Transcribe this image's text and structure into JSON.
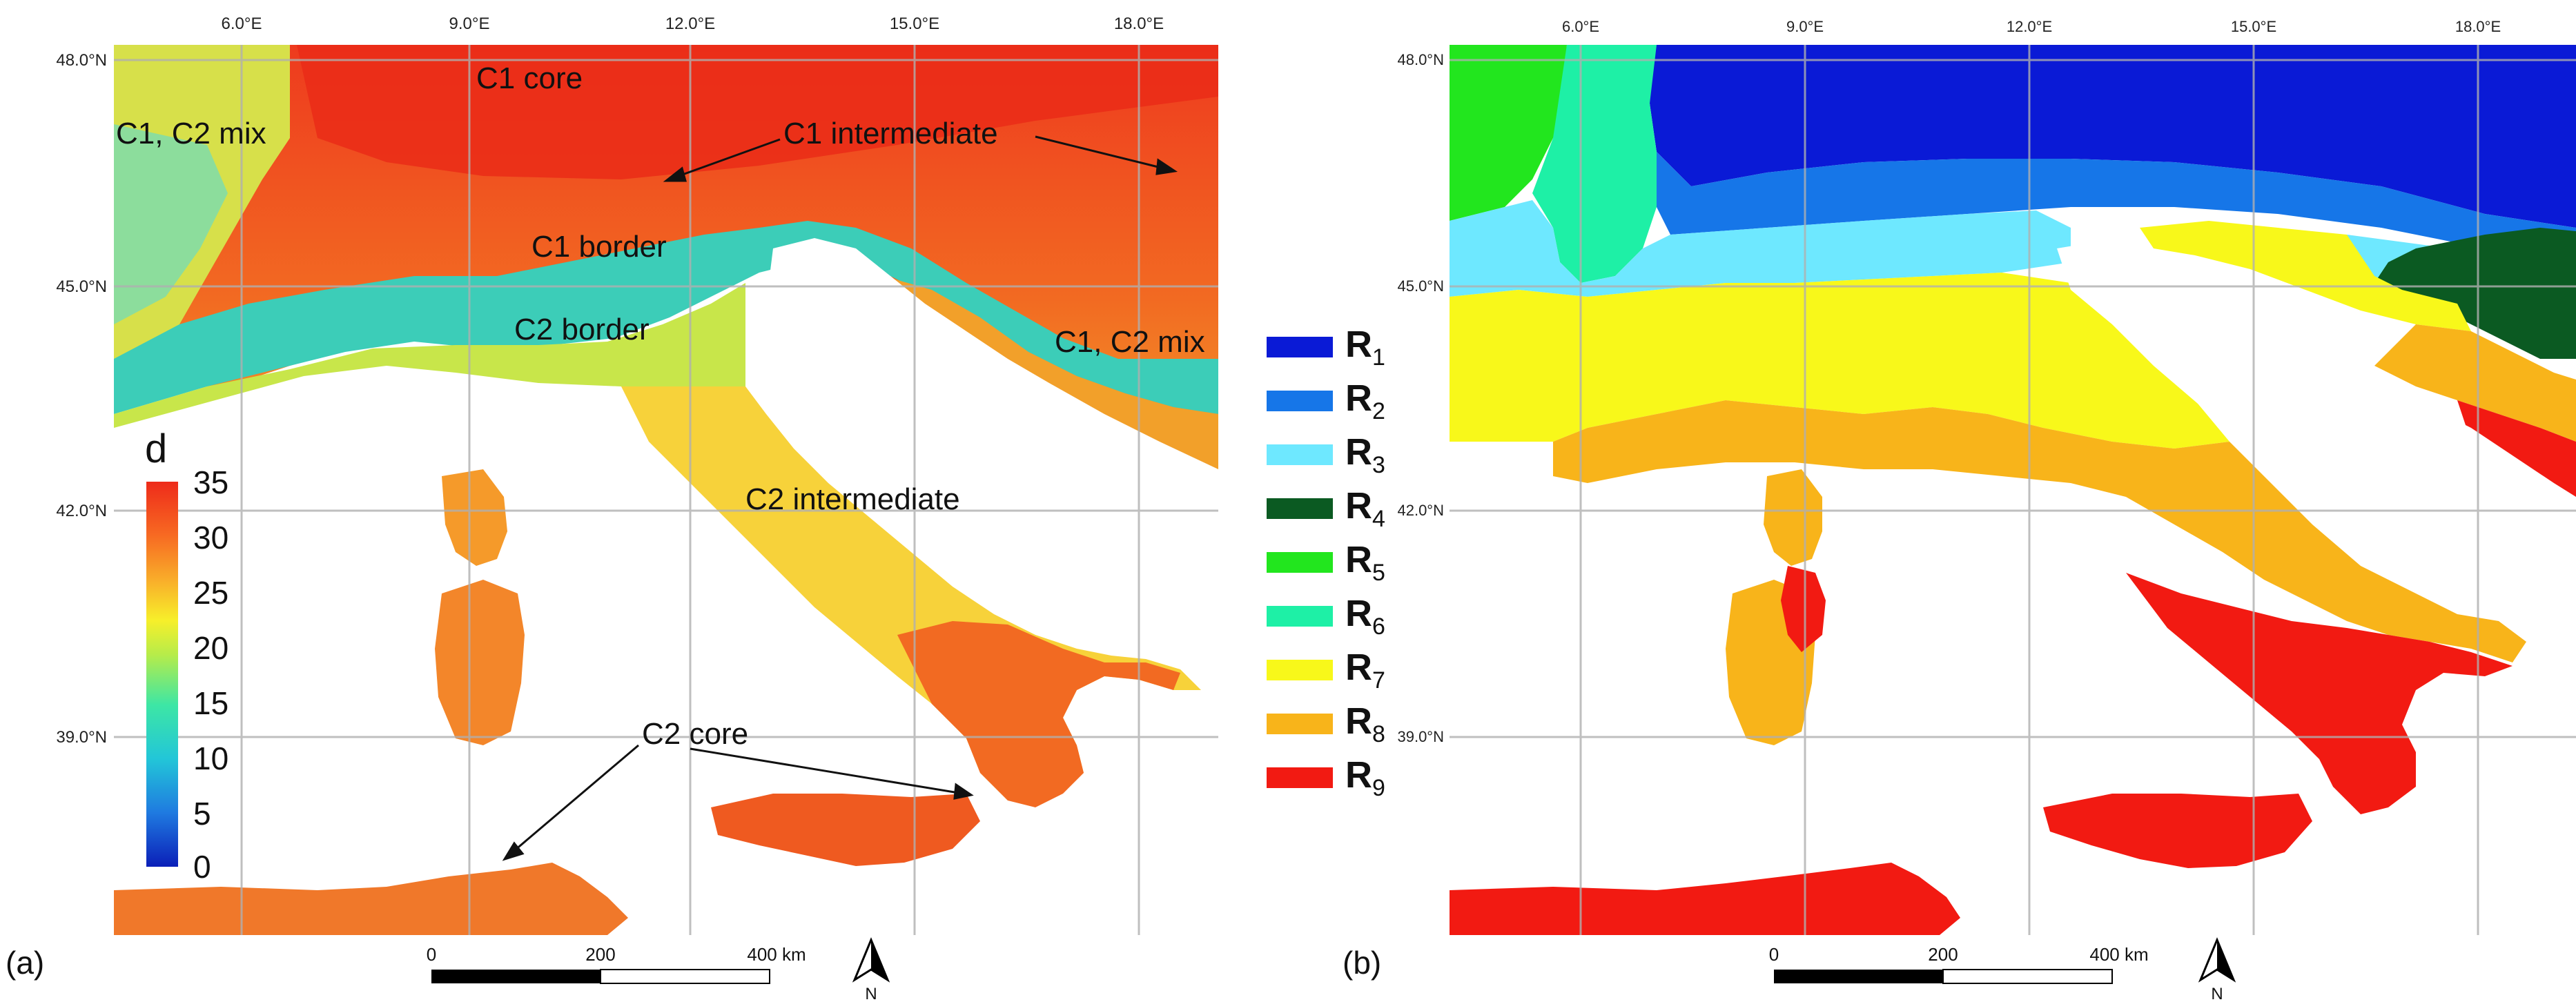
{
  "panel_a": {
    "letter": "(a)",
    "lat_labels": [
      "48.0°N",
      "45.0°N",
      "42.0°N",
      "39.0°N"
    ],
    "lon_labels": [
      "6.0°E",
      "9.0°E",
      "12.0°E",
      "15.0°E",
      "18.0°E"
    ],
    "annotations": {
      "c1_core": "C1 core",
      "c1_c2_mix_left": "C1, C2 mix",
      "c1_intermediate": "C1 intermediate",
      "c1_border": "C1 border",
      "c2_border": "C2 border",
      "c1_c2_mix_right": "C1, C2 mix",
      "c2_intermediate": "C2 intermediate",
      "c2_core": "C2 core"
    },
    "colorbar": {
      "title": "d",
      "ticks": [
        "35",
        "30",
        "25",
        "20",
        "15",
        "10",
        "5",
        "0"
      ],
      "colors": [
        "#0b1fb8",
        "#1f7ae0",
        "#22c6d8",
        "#3de6a5",
        "#b6ec4a",
        "#f7ef2a",
        "#f9b02a",
        "#f76a22",
        "#ee2b1a"
      ]
    },
    "scalebar": {
      "tick0": "0",
      "tick1": "200",
      "tick2": "400 km"
    },
    "north_label": "N"
  },
  "panel_b": {
    "letter": "(b)",
    "lat_labels": [
      "48.0°N",
      "45.0°N",
      "42.0°N",
      "39.0°N"
    ],
    "lon_labels": [
      "6.0°E",
      "9.0°E",
      "12.0°E",
      "15.0°E",
      "18.0°E"
    ],
    "scalebar": {
      "tick0": "0",
      "tick1": "200",
      "tick2": "400 km"
    },
    "north_label": "N"
  },
  "regions_legend": [
    {
      "letter": "R",
      "sub": "1",
      "color": "#0a1ad6"
    },
    {
      "letter": "R",
      "sub": "2",
      "color": "#1676e8"
    },
    {
      "letter": "R",
      "sub": "3",
      "color": "#6ee8ff"
    },
    {
      "letter": "R",
      "sub": "4",
      "color": "#0b5a22"
    },
    {
      "letter": "R",
      "sub": "5",
      "color": "#22e61e"
    },
    {
      "letter": "R",
      "sub": "6",
      "color": "#1ef0a6"
    },
    {
      "letter": "R",
      "sub": "7",
      "color": "#f8f81a"
    },
    {
      "letter": "R",
      "sub": "8",
      "color": "#f8b41a"
    },
    {
      "letter": "R",
      "sub": "9",
      "color": "#f21a12"
    }
  ]
}
